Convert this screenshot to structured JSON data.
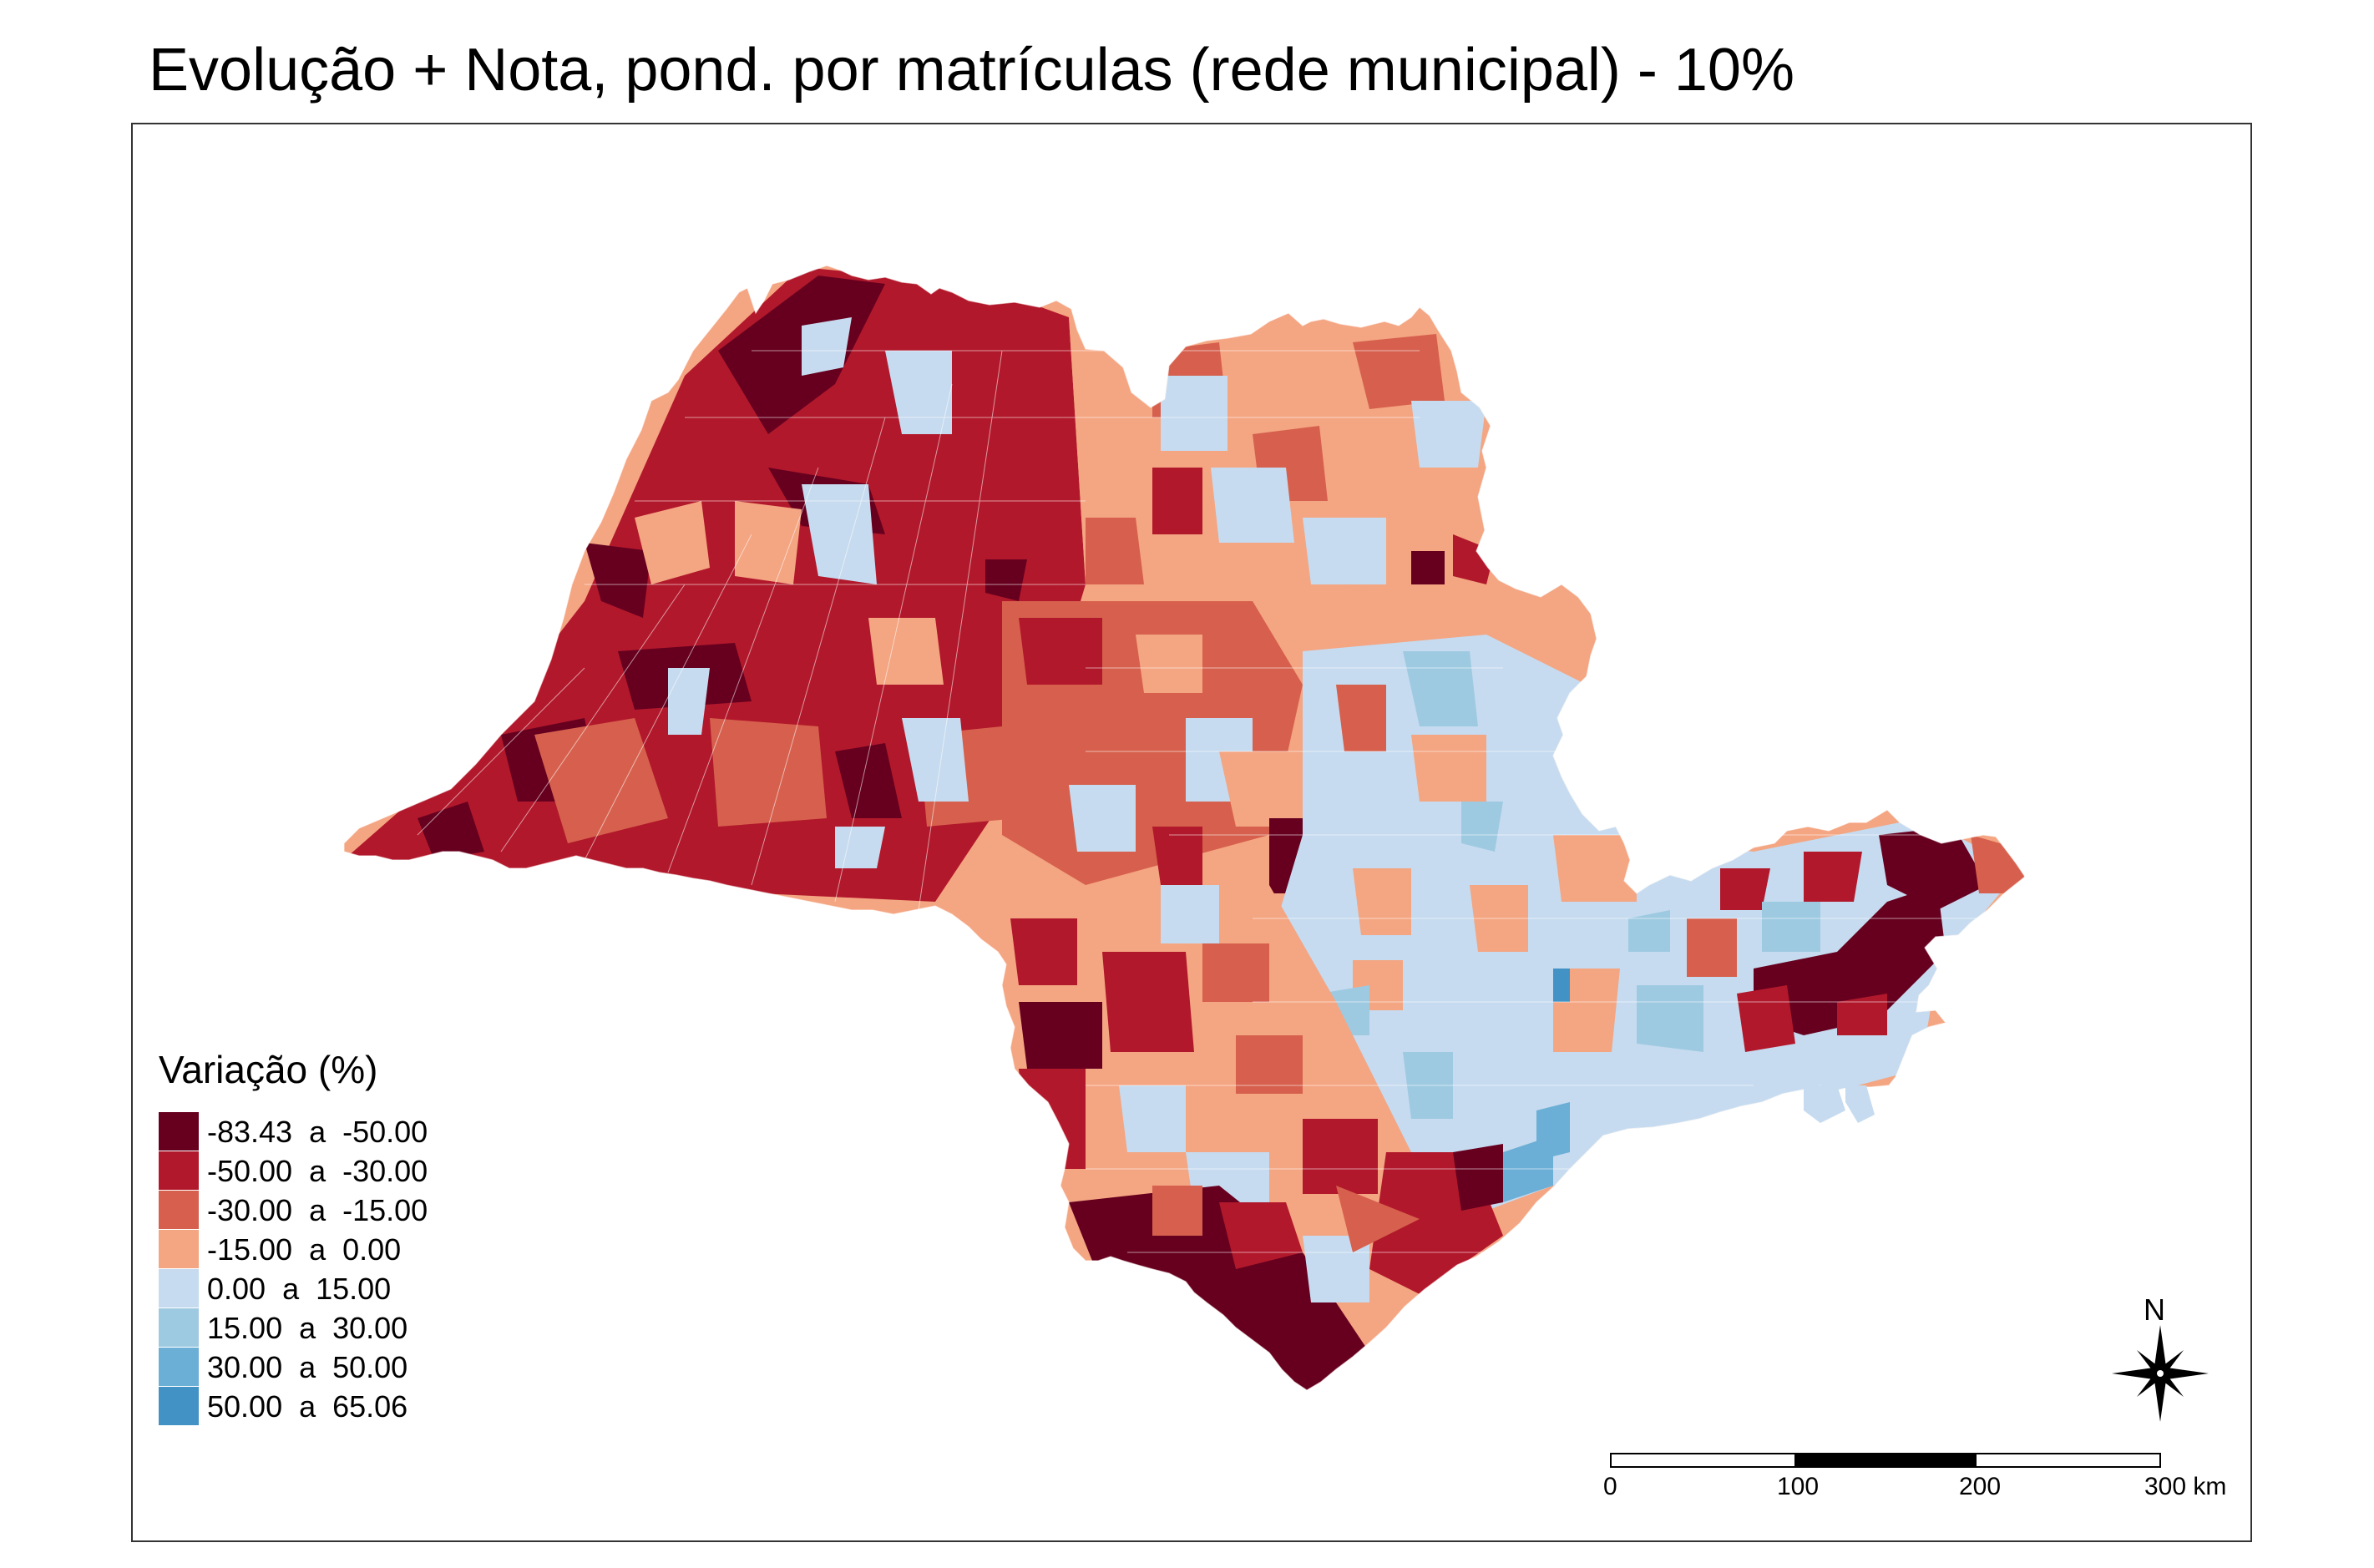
{
  "title": "Evolução + Nota, pond. por matrículas (rede municipal) - 10%",
  "legend": {
    "title": "Variação (%)",
    "items": [
      {
        "label": "-83.43  a  -50.00",
        "color": "#67001f"
      },
      {
        "label": "-50.00  a  -30.00",
        "color": "#b2182b"
      },
      {
        "label": "-30.00  a  -15.00",
        "color": "#d6604d"
      },
      {
        "label": "-15.00  a  0.00",
        "color": "#f4a582"
      },
      {
        "label": "0.00  a  15.00",
        "color": "#c6dbef"
      },
      {
        "label": "15.00  a  30.00",
        "color": "#9ecae1"
      },
      {
        "label": "30.00  a  50.00",
        "color": "#6baed6"
      },
      {
        "label": "50.00  a  65.06",
        "color": "#4292c6"
      }
    ]
  },
  "north_arrow": {
    "label": "N",
    "icon": "compass-rose-icon"
  },
  "scale_bar": {
    "labels": [
      "0",
      "100",
      "200",
      "300 km"
    ]
  }
}
